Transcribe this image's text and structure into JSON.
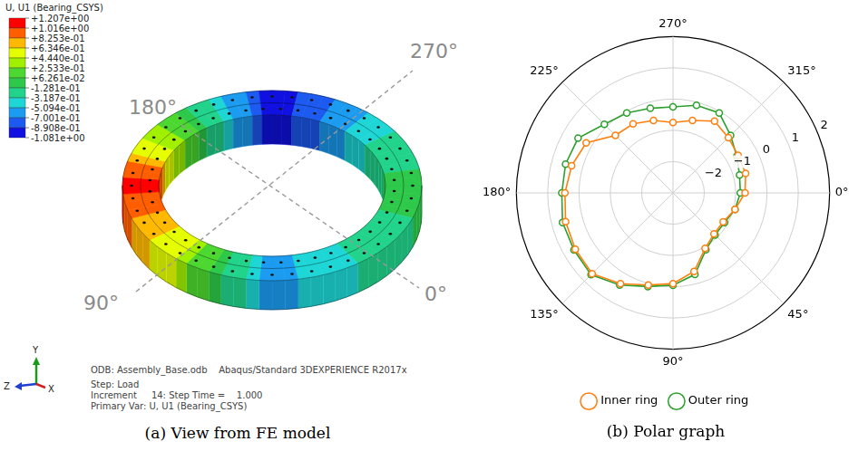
{
  "fe_view": {
    "caption": "(a) View from FE model",
    "colorbar": {
      "title": "U, U1 (Bearing_CSYS)",
      "ticks": [
        {
          "value": 1.207,
          "label": "+1.207e+00"
        },
        {
          "value": 1.016,
          "label": "+1.016e+00"
        },
        {
          "value": 0.8253,
          "label": "+8.253e-01"
        },
        {
          "value": 0.6346,
          "label": "+6.346e-01"
        },
        {
          "value": 0.444,
          "label": "+4.440e-01"
        },
        {
          "value": 0.2533,
          "label": "+2.533e-01"
        },
        {
          "value": 0.06261,
          "label": "+6.261e-02"
        },
        {
          "value": -0.1281,
          "label": "-1.281e-01"
        },
        {
          "value": -0.3187,
          "label": "-3.187e-01"
        },
        {
          "value": -0.5094,
          "label": "-5.094e-01"
        },
        {
          "value": -0.7001,
          "label": "-7.001e-01"
        },
        {
          "value": -0.8908,
          "label": "-8.908e-01"
        },
        {
          "value": -1.081,
          "label": "-1.081e+00"
        }
      ],
      "colors": [
        "#ff0000",
        "#ff5e00",
        "#ffb900",
        "#e6ff00",
        "#a0f000",
        "#4cd830",
        "#2ec84a",
        "#22d38c",
        "#1fd6d6",
        "#1c9cf0",
        "#1c5af0",
        "#1010e0"
      ]
    },
    "direction_labels": {
      "upper_left": "180°",
      "upper_right": "270°",
      "lower_left": "90°",
      "lower_right": "0°"
    },
    "info": [
      "ODB: Assembly_Base.odb    Abaqus/Standard 3DEXPERIENCE R2017x",
      "Step: Load",
      "Increment     14: Step Time =    1.000",
      "Primary Var: U, U1 (Bearing_CSYS)"
    ],
    "triad": {
      "y": "Y",
      "z": "Z",
      "x": "X"
    }
  },
  "chart_data": {
    "type": "polar",
    "title": "(b) Polar graph",
    "categories": [
      "0°",
      null,
      null,
      "45°",
      null,
      null,
      "90°",
      null,
      null,
      "135°",
      null,
      null,
      "180°",
      null,
      null,
      "225°",
      null,
      null,
      "270°",
      null,
      null,
      "315°",
      null,
      null
    ],
    "series": [
      {
        "name": "Inner ring",
        "color": "#ff7f0e",
        "marker": "circle",
        "values": [
          -0.7,
          -0.95,
          -1.15,
          -1.15,
          -0.95,
          -0.4,
          -0.1,
          0.05,
          0.35,
          0.65,
          0.6,
          0.55,
          0.45,
          0.35,
          0.2,
          -0.4,
          -0.45,
          -0.6,
          -0.75,
          -0.6,
          -0.35,
          -0.5,
          -0.6,
          -0.6
        ]
      },
      {
        "name": "Outer ring",
        "color": "#2ca02c",
        "marker": "circle",
        "values": [
          -0.85,
          -0.95,
          -1.1,
          -1.1,
          -0.9,
          -0.3,
          -0.05,
          0.1,
          0.4,
          0.7,
          0.65,
          0.65,
          0.55,
          0.55,
          0.5,
          0.1,
          -0.05,
          -0.2,
          -0.25,
          -0.1,
          -0.05,
          -0.4,
          -0.65,
          -0.8
        ]
      }
    ],
    "ylim": [
      -3,
      2
    ],
    "yticks": [
      {
        "value": -2,
        "label": "−2"
      },
      {
        "value": -1,
        "label": "−1"
      },
      0,
      1,
      2
    ],
    "grid": true,
    "legend": "bottom"
  }
}
